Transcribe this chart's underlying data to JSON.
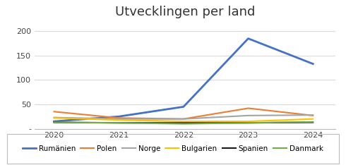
{
  "title": "Utvecklingen per land",
  "years": [
    2020,
    2021,
    2022,
    2023,
    2024
  ],
  "series": {
    "Rumänien": [
      15,
      25,
      45,
      185,
      133
    ],
    "Polen": [
      35,
      22,
      20,
      42,
      27
    ],
    "Norge": [
      23,
      20,
      20,
      27,
      28
    ],
    "Bulgarien": [
      22,
      18,
      15,
      15,
      20
    ],
    "Spanien": [
      13,
      12,
      12,
      12,
      13
    ],
    "Danmark": [
      13,
      12,
      10,
      12,
      14
    ]
  },
  "colors": {
    "Rumänien": "#4472C4",
    "Polen": "#ED7D31",
    "Norge": "#A5A5A5",
    "Bulgarien": "#FFC000",
    "Spanien": "#1A1A1A",
    "Danmark": "#70AD47"
  },
  "ylim": [
    0,
    220
  ],
  "yticks": [
    0,
    50,
    100,
    150,
    200
  ],
  "ytick_labels": [
    "-",
    "50",
    "100",
    "150",
    "200"
  ],
  "background_color": "#ffffff",
  "grid_color": "#D9D9D9",
  "title_fontsize": 13,
  "tick_fontsize": 8,
  "legend_fontsize": 7.5
}
